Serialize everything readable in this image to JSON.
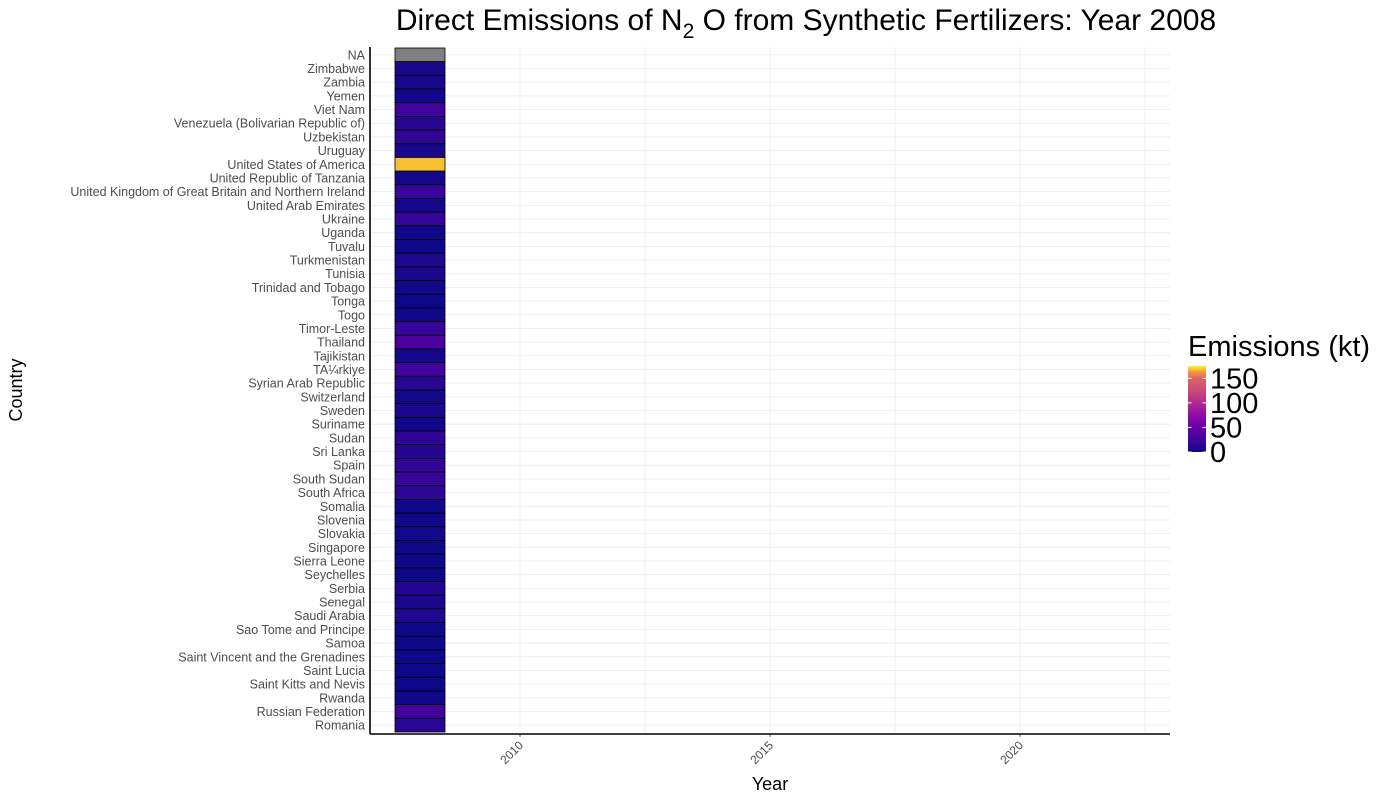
{
  "chart_data": {
    "type": "heatmap",
    "title": {
      "main": "Direct Emissions of N",
      "subscript": "2",
      "rest": " O from Synthetic Fertilizers: Year 2008"
    },
    "xlabel": "Year",
    "ylabel": "Country",
    "x": [
      2008
    ],
    "xlim": [
      2007,
      2023
    ],
    "x_ticks": [
      "2010",
      "2015",
      "2020"
    ],
    "grid": true,
    "colorscale": "plasma",
    "na_color": "#7f7f7f",
    "legend": {
      "title": "Emissions (kt)",
      "position": "right",
      "limits": [
        0,
        175
      ],
      "breaks": [
        "0",
        "50",
        "100",
        "150"
      ]
    },
    "rows": [
      {
        "country": "NA",
        "value": null
      },
      {
        "country": "Zimbabwe",
        "value": 6
      },
      {
        "country": "Zambia",
        "value": 5
      },
      {
        "country": "Yemen",
        "value": 3
      },
      {
        "country": "Viet Nam",
        "value": 24
      },
      {
        "country": "Venezuela (Bolivarian Republic of)",
        "value": 12
      },
      {
        "country": "Uzbekistan",
        "value": 17
      },
      {
        "country": "Uruguay",
        "value": 5
      },
      {
        "country": "United States of America",
        "value": 168
      },
      {
        "country": "United Republic of Tanzania",
        "value": 4
      },
      {
        "country": "United Kingdom of Great Britain and Northern Ireland",
        "value": 21
      },
      {
        "country": "United Arab Emirates",
        "value": 4
      },
      {
        "country": "Ukraine",
        "value": 19
      },
      {
        "country": "Uganda",
        "value": 2
      },
      {
        "country": "Tuvalu",
        "value": 0
      },
      {
        "country": "Turkmenistan",
        "value": 9
      },
      {
        "country": "Tunisia",
        "value": 6
      },
      {
        "country": "Trinidad and Tobago",
        "value": 3
      },
      {
        "country": "Tonga",
        "value": 0
      },
      {
        "country": "Togo",
        "value": 1
      },
      {
        "country": "Timor-Leste",
        "value": 20
      },
      {
        "country": "Thailand",
        "value": 30
      },
      {
        "country": "Tajikistan",
        "value": 4
      },
      {
        "country": "TA¼rkiye",
        "value": 26
      },
      {
        "country": "Syrian Arab Republic",
        "value": 12
      },
      {
        "country": "Switzerland",
        "value": 3
      },
      {
        "country": "Sweden",
        "value": 6
      },
      {
        "country": "Suriname",
        "value": 2
      },
      {
        "country": "Sudan",
        "value": 16
      },
      {
        "country": "Sri Lanka",
        "value": 11
      },
      {
        "country": "Spain",
        "value": 18
      },
      {
        "country": "South Sudan",
        "value": 20
      },
      {
        "country": "South Africa",
        "value": 15
      },
      {
        "country": "Somalia",
        "value": 1
      },
      {
        "country": "Slovenia",
        "value": 2
      },
      {
        "country": "Slovakia",
        "value": 4
      },
      {
        "country": "Singapore",
        "value": 1
      },
      {
        "country": "Sierra Leone",
        "value": 1
      },
      {
        "country": "Seychelles",
        "value": 0
      },
      {
        "country": "Serbia",
        "value": 10
      },
      {
        "country": "Senegal",
        "value": 6
      },
      {
        "country": "Saudi Arabia",
        "value": 9
      },
      {
        "country": "Sao Tome and Principe",
        "value": 0
      },
      {
        "country": "Samoa",
        "value": 0
      },
      {
        "country": "Saint Vincent and the Grenadines",
        "value": 0
      },
      {
        "country": "Saint Lucia",
        "value": 0
      },
      {
        "country": "Saint Kitts and Nevis",
        "value": 0
      },
      {
        "country": "Rwanda",
        "value": 1
      },
      {
        "country": "Russian Federation",
        "value": 25
      },
      {
        "country": "Romania",
        "value": 14
      }
    ]
  }
}
